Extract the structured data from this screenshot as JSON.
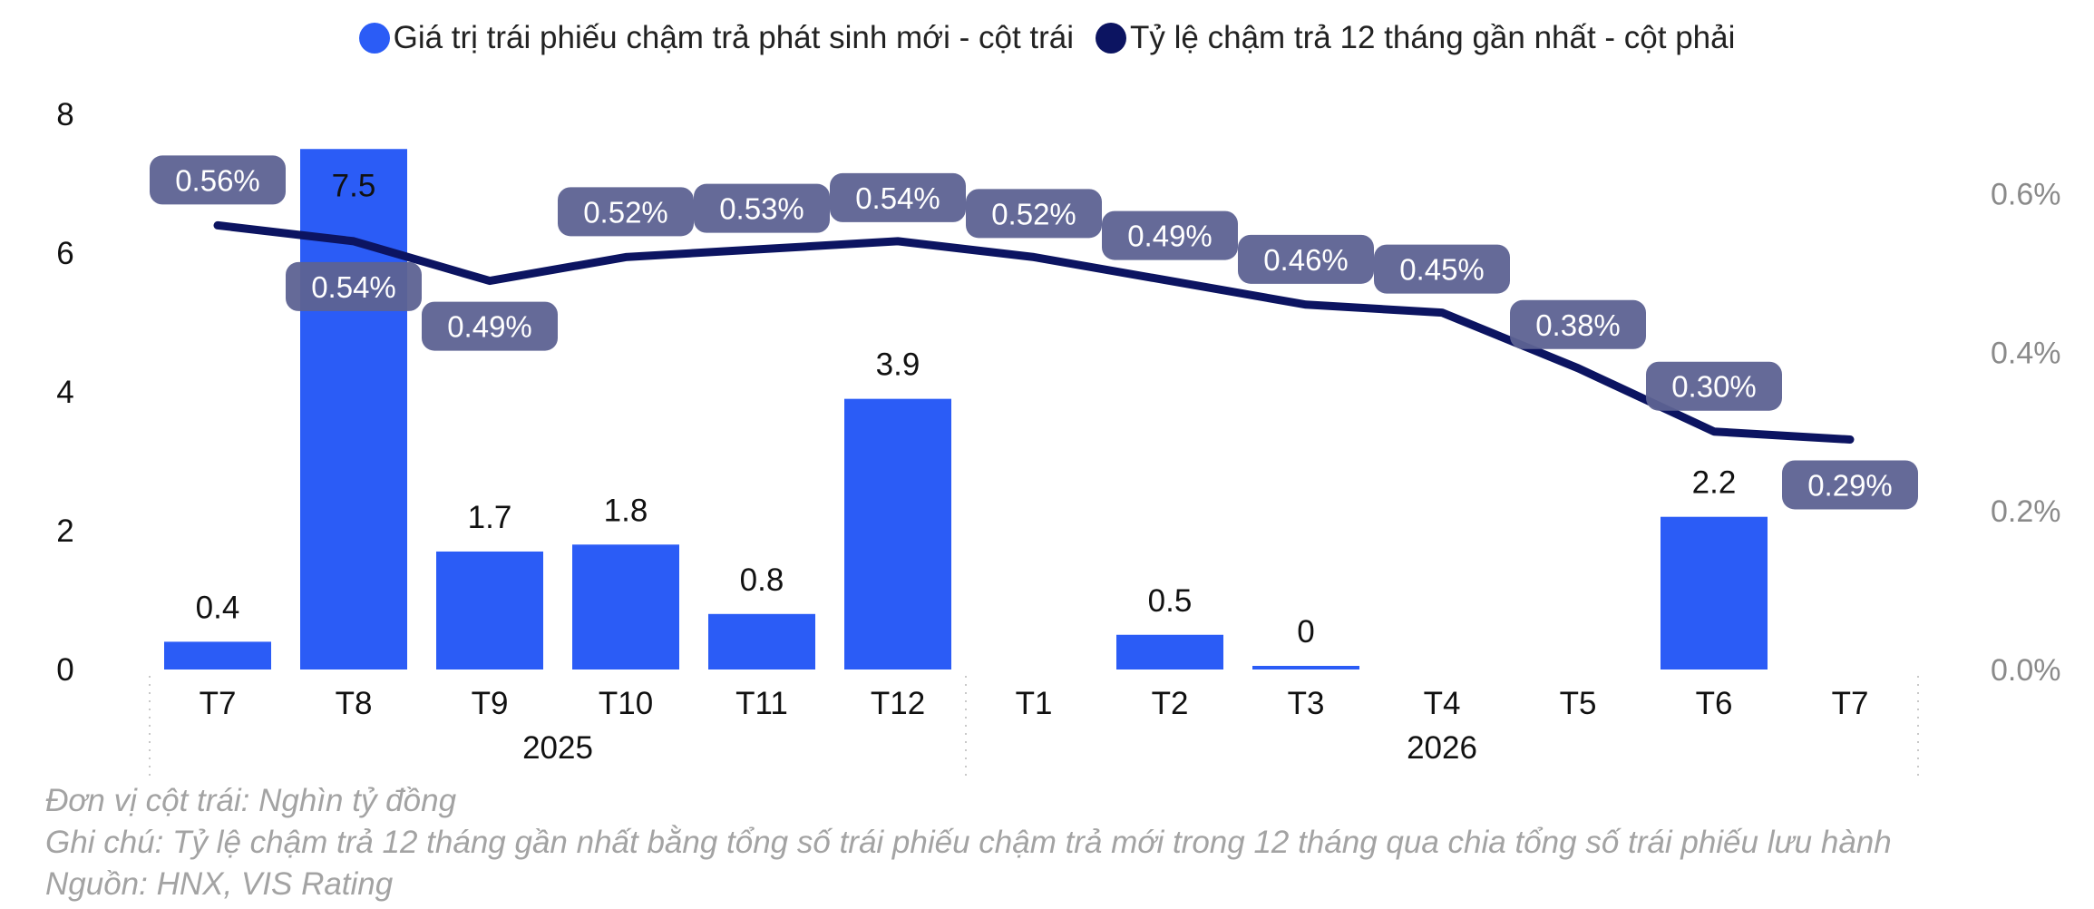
{
  "chart_data": {
    "type": "bar+line",
    "legend": [
      {
        "label": "Giá trị trái phiếu chậm trả phát sinh mới - cột trái",
        "color": "#2b5cf6"
      },
      {
        "label": "Tỷ lệ chậm trả 12 tháng gần nhất - cột phải",
        "color": "#0c1461"
      }
    ],
    "categories": [
      "T7",
      "T8",
      "T9",
      "T10",
      "T11",
      "T12",
      "T1",
      "T2",
      "T3",
      "T4",
      "T5",
      "T6",
      "T7"
    ],
    "year_groups": [
      {
        "label": "2025",
        "from": 0,
        "to": 5
      },
      {
        "label": "2026",
        "from": 6,
        "to": 12
      }
    ],
    "series": [
      {
        "name": "Giá trị trái phiếu chậm trả phát sinh mới - cột trái",
        "type": "bar",
        "axis": "left",
        "color": "#2b5cf6",
        "values": [
          0.4,
          7.5,
          1.7,
          1.8,
          0.8,
          3.9,
          null,
          0.5,
          0,
          null,
          null,
          2.2,
          null
        ],
        "labels": [
          "0.4",
          "7.5",
          "1.7",
          "1.8",
          "0.8",
          "3.9",
          "",
          "0.5",
          "0",
          "",
          "",
          "2.2",
          ""
        ]
      },
      {
        "name": "Tỷ lệ chậm trả 12 tháng gần nhất - cột phải",
        "type": "line",
        "axis": "right",
        "color": "#0c1461",
        "label_bg": "#5d6292",
        "values": [
          0.56,
          0.54,
          0.49,
          0.52,
          0.53,
          0.54,
          0.52,
          0.49,
          0.46,
          0.45,
          0.38,
          0.3,
          0.29
        ],
        "labels": [
          "0.56%",
          "0.54%",
          "0.49%",
          "0.52%",
          "0.53%",
          "0.54%",
          "0.52%",
          "0.49%",
          "0.46%",
          "0.45%",
          "0.38%",
          "0.30%",
          "0.29%"
        ]
      }
    ],
    "y_left": {
      "min": 0,
      "max": 8,
      "ticks": [
        "0",
        "2",
        "4",
        "6",
        "8"
      ]
    },
    "y_right": {
      "min": 0,
      "max": 0.7,
      "ticks": [
        "0.0%",
        "0.2%",
        "0.4%",
        "0.6%"
      ],
      "tick_values": [
        0,
        0.2,
        0.4,
        0.6
      ]
    },
    "grid": false
  },
  "notes": {
    "unit": "Đơn vị cột trái: Nghìn tỷ đồng",
    "note": "Ghi chú: Tỷ lệ chậm trả 12 tháng gần nhất bằng tổng số trái phiếu chậm trả mới trong 12 tháng qua chia tổng số trái phiếu lưu hành",
    "source": "Nguồn: HNX, VIS Rating"
  }
}
